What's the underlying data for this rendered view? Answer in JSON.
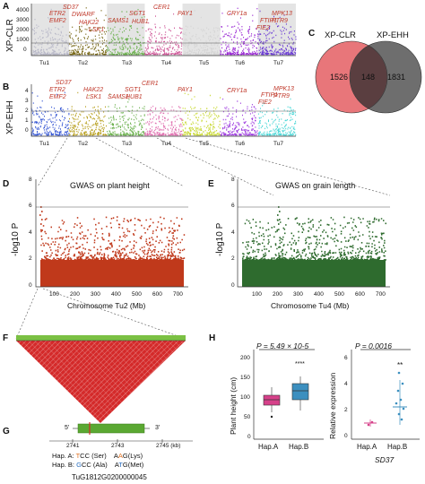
{
  "panels": {
    "A": {
      "letter": "A",
      "ylabel": "XP-CLR",
      "yticks": [
        "4000",
        "3000",
        "2000",
        "1000",
        "0"
      ],
      "chromosomes": [
        "Tu1",
        "Tu2",
        "Tu3",
        "Tu4",
        "Tu5",
        "Tu6",
        "Tu7"
      ],
      "genes": [
        "ETR2",
        "EMF2",
        "SD37",
        "DWARF",
        "HAK22",
        "LSK1",
        "SAMS1",
        "SGT1",
        "HUB1",
        "CER1",
        "PAY1",
        "CRY1a",
        "FIE2",
        "FTIP1",
        "MPK13",
        "PTR9"
      ]
    },
    "B": {
      "letter": "B",
      "ylabel": "XP-EHH",
      "yticks": [
        "4",
        "3",
        "2",
        "1",
        "0"
      ],
      "chromosomes": [
        "Tu1",
        "Tu2",
        "Tu3",
        "Tu4",
        "Tu5",
        "Tu6",
        "Tu7"
      ],
      "genes": [
        "ETR2",
        "EMF2",
        "SD37",
        "HAK22",
        "LSK1",
        "SAMS1",
        "SGT1",
        "HUB1",
        "CER1",
        "PAY1",
        "CRY1a",
        "FTIP1",
        "FIE2",
        "MPK13",
        "PTR9"
      ]
    },
    "C": {
      "letter": "C",
      "set_a": "XP-CLR",
      "set_b": "XP-EHH",
      "only_a": "1526",
      "both": "148",
      "only_b": "1831",
      "color_a": "#e8767a",
      "color_b": "#666666"
    },
    "D": {
      "letter": "D",
      "title": "GWAS on plant height",
      "ylabel": "-log10 P",
      "xlabel": "Chromosome Tu2 (Mb)",
      "yticks": [
        "8",
        "6",
        "4",
        "2",
        "0"
      ],
      "xticks": [
        "100",
        "200",
        "300",
        "400",
        "500",
        "600",
        "700"
      ],
      "color": "#c0391b"
    },
    "E": {
      "letter": "E",
      "title": "GWAS on grain length",
      "ylabel": "-log10 P",
      "xlabel": "Chromosome Tu4 (Mb)",
      "yticks": [
        "8",
        "6",
        "4",
        "2",
        "0"
      ],
      "xticks": [
        "100",
        "200",
        "300",
        "400",
        "500",
        "600",
        "700"
      ],
      "color": "#2e6b2e"
    },
    "F": {
      "letter": "F"
    },
    "G": {
      "letter": "G",
      "five": "5'",
      "three": "3'",
      "ticks": [
        "2741",
        "2743",
        "2745 (kb)"
      ],
      "hapA_label": "Hap. A:",
      "hapA_codon1_var": "T",
      "hapA_codon1_rest": "CC (Ser)",
      "hapA_codon2_pre": "A",
      "hapA_codon2_var": "A",
      "hapA_codon2_rest": "G(Lys)",
      "hapB_label": "Hap. B:",
      "hapB_codon1_var": "G",
      "hapB_codon1_rest": "CC (Ala)",
      "hapB_codon2_pre": "A",
      "hapB_codon2_var": "T",
      "hapB_codon2_rest": "G(Met)",
      "gene_id": "TuG1812G0200000045"
    },
    "H": {
      "letter": "H",
      "left_p": "P = 5.49 × 10-5",
      "left_ylabel": "Plant height (cm)",
      "left_yticks": [
        "200",
        "150",
        "100",
        "50",
        "0"
      ],
      "left_groups": [
        "Hap.A",
        "Hap.B"
      ],
      "right_p": "P = 0.0016",
      "right_ylabel": "Relative expression",
      "right_yticks": [
        "6",
        "4",
        "2",
        "0"
      ],
      "right_groups": [
        "Hap.A",
        "Hap.B"
      ],
      "right_gene": "SD37",
      "sig": "**",
      "sig4": "****"
    }
  }
}
